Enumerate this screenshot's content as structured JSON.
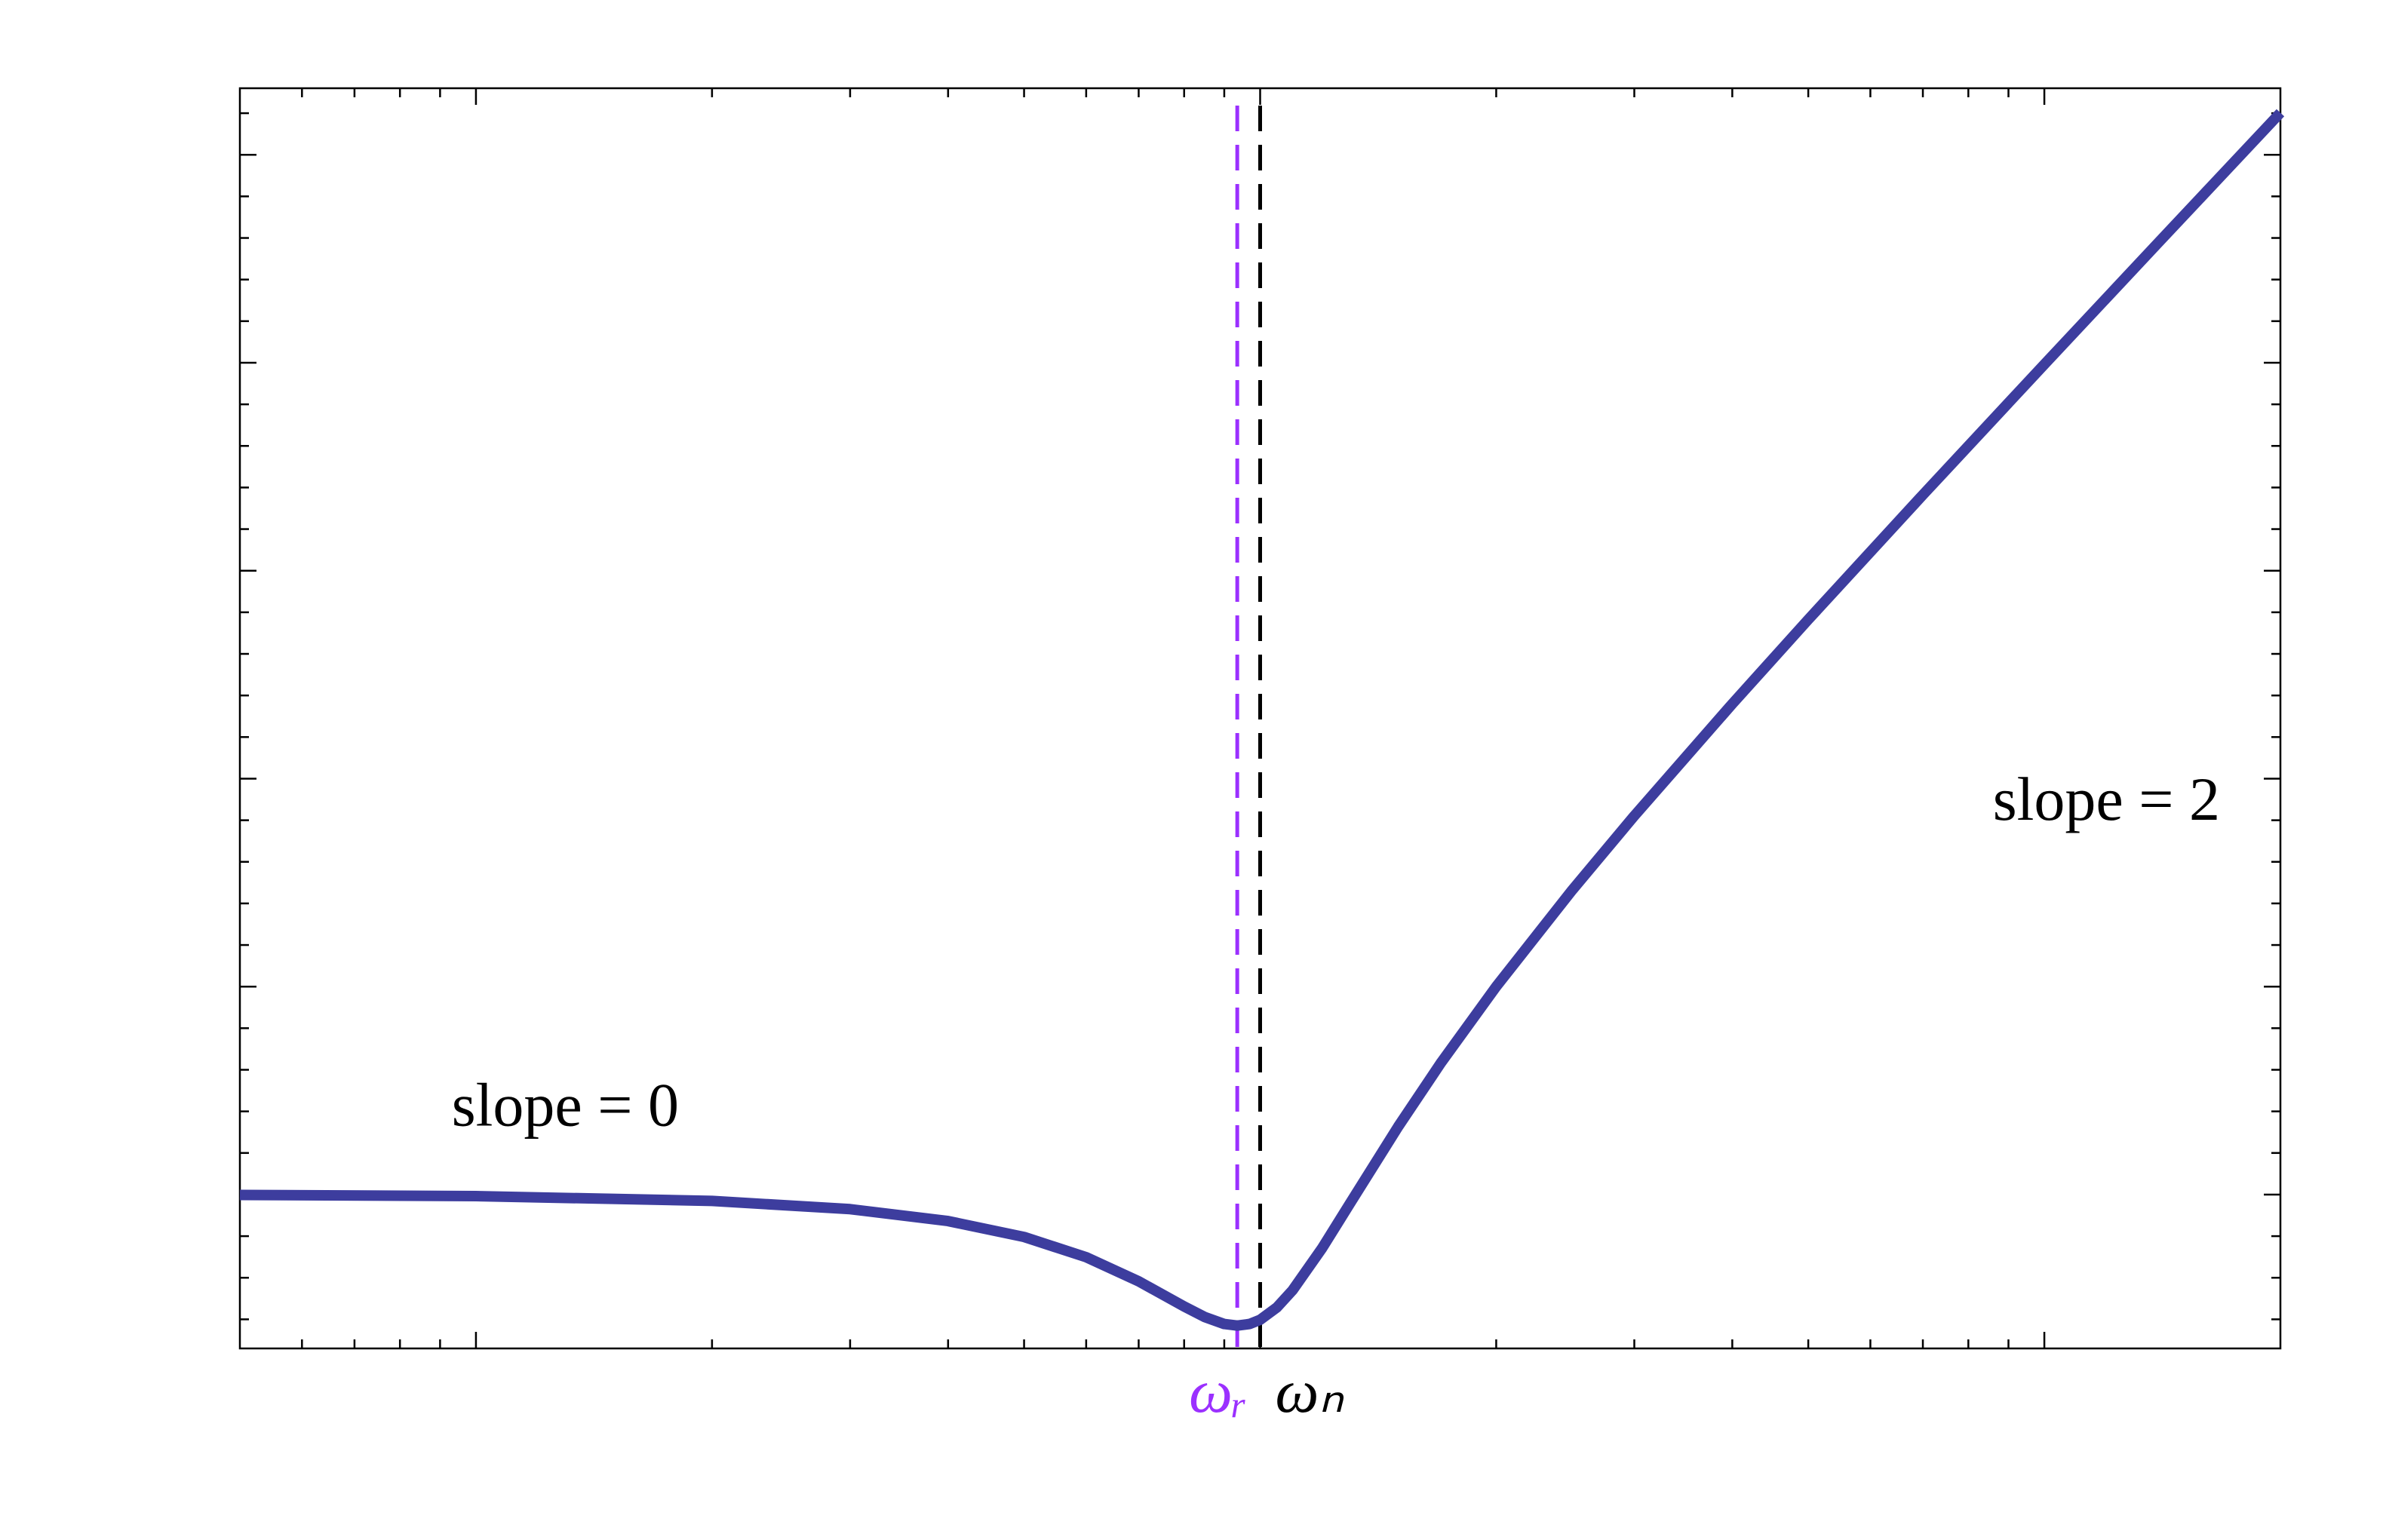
{
  "chart_data": {
    "type": "line",
    "log_x": true,
    "grid": false,
    "x": [
      0.05,
      0.1,
      0.2,
      0.3,
      0.4,
      0.5,
      0.6,
      0.7,
      0.8,
      0.85,
      0.9,
      0.935,
      0.97,
      1,
      1.05,
      1.1,
      1.2,
      1.3,
      1.5,
      1.7,
      2,
      2.5,
      3,
      4,
      5,
      7,
      10,
      14,
      20
    ],
    "series": [
      {
        "color": "#3d3d9e",
        "values": [
          -0.019,
          -0.076,
          -0.308,
          -0.703,
          -1.275,
          -2.041,
          -3.013,
          -4.173,
          -5.382,
          -5.891,
          -6.224,
          -6.3,
          -6.222,
          -6.021,
          -5.435,
          -4.602,
          -2.568,
          -0.464,
          3.274,
          6.329,
          10,
          14.643,
          18.212,
          23.598,
          27.651,
          33.647,
          39.924,
          45.806,
          52.022
        ]
      }
    ],
    "xlim": [
      0.05,
      20
    ],
    "ylim": [
      -7.4,
      53.2
    ],
    "xticks": [
      0.1,
      1,
      10
    ],
    "xminorticks": [
      0.06,
      0.07,
      0.08,
      0.09,
      0.2,
      0.3,
      0.4,
      0.5,
      0.6,
      0.7,
      0.8,
      0.9,
      2,
      3,
      4,
      5,
      6,
      7,
      8,
      9
    ],
    "yticks": [
      0,
      10,
      20,
      30,
      40,
      50
    ],
    "yminorticks": [
      -6,
      -4,
      -2,
      2,
      4,
      6,
      8,
      12,
      14,
      16,
      18,
      22,
      24,
      26,
      28,
      32,
      34,
      36,
      38,
      42,
      44,
      46,
      48,
      52
    ],
    "vlines": [
      {
        "x": 0.935,
        "label": "ωᵣ",
        "color": "#9b30ff"
      },
      {
        "x": 1,
        "label": "ωₙ",
        "color": "#000000"
      }
    ],
    "annotations": [
      {
        "text": "slope = 0",
        "x": 0.13,
        "y": 4
      },
      {
        "text": "slope = 2",
        "x": 12,
        "y": 18.7
      }
    ]
  }
}
